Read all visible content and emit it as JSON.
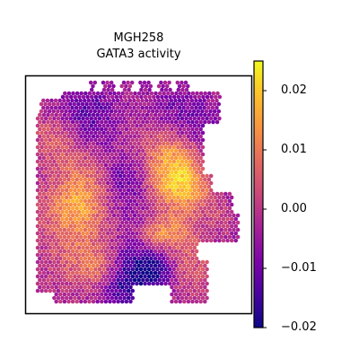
{
  "chart_data": {
    "type": "heatmap",
    "title": "MGH258",
    "subtitle": "GATA3 activity",
    "xlabel": "",
    "ylabel": "",
    "colorbar": {
      "colormap": "plasma",
      "range": [
        -0.02,
        0.025
      ],
      "ticks": [
        0.02,
        0.01,
        0.0,
        -0.01,
        -0.02
      ],
      "tick_labels": [
        "0.02",
        "0.01",
        "0.00",
        "−0.01",
        "−0.02"
      ]
    },
    "grid": false
  }
}
